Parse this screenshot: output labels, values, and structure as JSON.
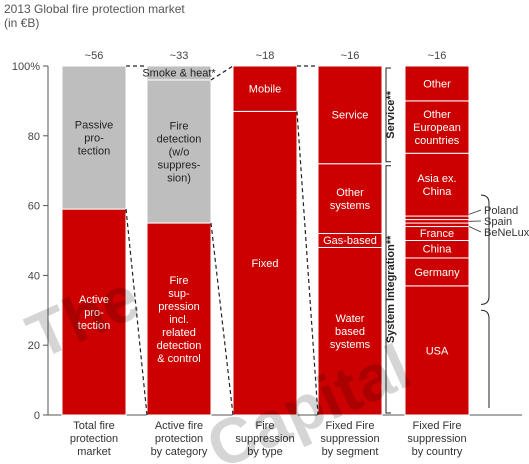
{
  "chart_data": {
    "type": "bar",
    "stacked": true,
    "title": "2013 Global fire protection market",
    "subtitle": "(in €B)",
    "ylim": [
      0,
      100
    ],
    "yticks": [
      "0",
      "20",
      "40",
      "60",
      "80",
      "100%"
    ],
    "grid": false,
    "colors": {
      "red": "#cc0000",
      "gray": "#bebebe"
    },
    "categories": [
      "Total fire protection market",
      "Active fire protection by category",
      "Fire suppression by type",
      "Fixed Fire suppression by segment",
      "Fixed Fire suppression by country"
    ],
    "category_lines": [
      [
        "Total fire",
        "protection",
        "market"
      ],
      [
        "Active fire",
        "protection",
        "by category"
      ],
      [
        "Fire",
        "suppression",
        "by type"
      ],
      [
        "Fixed Fire",
        "suppression",
        "by segment"
      ],
      [
        "Fixed Fire",
        "suppression",
        "by country"
      ]
    ],
    "totals": [
      "~56",
      "~33",
      "~18",
      "~16",
      "~16"
    ],
    "bars": [
      {
        "segments": [
          {
            "label_lines": [
              "Active",
              "pro-",
              "tection"
            ],
            "value": 59,
            "color": "red"
          },
          {
            "label_lines": [
              "Passive",
              "pro-",
              "tection"
            ],
            "value": 41,
            "color": "gray"
          }
        ]
      },
      {
        "segments": [
          {
            "label_lines": [
              "Fire",
              "sup-",
              "pression",
              "incl.",
              "related",
              "detection",
              "& control"
            ],
            "value": 55,
            "color": "red"
          },
          {
            "label_lines": [
              "Fire",
              "detection",
              "(w/o",
              "suppres-",
              "sion)"
            ],
            "value": 41,
            "color": "gray"
          },
          {
            "label_lines": [
              "Smoke & heat*"
            ],
            "value": 4,
            "color": "gray"
          }
        ]
      },
      {
        "segments": [
          {
            "label_lines": [
              "Fixed"
            ],
            "value": 87,
            "color": "red"
          },
          {
            "label_lines": [
              "Mobile"
            ],
            "value": 13,
            "color": "red"
          }
        ]
      },
      {
        "segments": [
          {
            "label_lines": [
              "Water",
              "based",
              "systems"
            ],
            "value": 48,
            "color": "red"
          },
          {
            "label_lines": [
              "Gas-based"
            ],
            "value": 4,
            "color": "red"
          },
          {
            "label_lines": [
              "Other",
              "systems"
            ],
            "value": 20,
            "color": "red"
          },
          {
            "label_lines": [
              "Service"
            ],
            "value": 28,
            "color": "red"
          }
        ]
      },
      {
        "segments": [
          {
            "label_lines": [
              "USA"
            ],
            "value": 37,
            "color": "red"
          },
          {
            "label_lines": [
              "Germany"
            ],
            "value": 8,
            "color": "red"
          },
          {
            "label_lines": [
              "China"
            ],
            "value": 5,
            "color": "red"
          },
          {
            "label_lines": [
              "France"
            ],
            "value": 4,
            "color": "red"
          },
          {
            "label_lines": [
              "BeNeLux"
            ],
            "value": 1,
            "color": "red"
          },
          {
            "label_lines": [
              "Spain"
            ],
            "value": 1,
            "color": "red"
          },
          {
            "label_lines": [
              "Poland"
            ],
            "value": 1,
            "color": "red"
          },
          {
            "label_lines": [
              "Asia ex.",
              "China"
            ],
            "value": 18,
            "color": "red"
          },
          {
            "label_lines": [
              "Other",
              "European",
              "countries"
            ],
            "value": 15,
            "color": "red"
          },
          {
            "label_lines": [
              "Other"
            ],
            "value": 10,
            "color": "red"
          }
        ]
      }
    ],
    "side_brackets": [
      {
        "label": "Service**",
        "from": 72,
        "to": 100
      },
      {
        "label": "System Integration**",
        "from": 0,
        "to": 72
      }
    ],
    "small_country_callouts": [
      "Poland",
      "Spain",
      "BeNeLux"
    ],
    "watermark": "The ... Capital"
  }
}
